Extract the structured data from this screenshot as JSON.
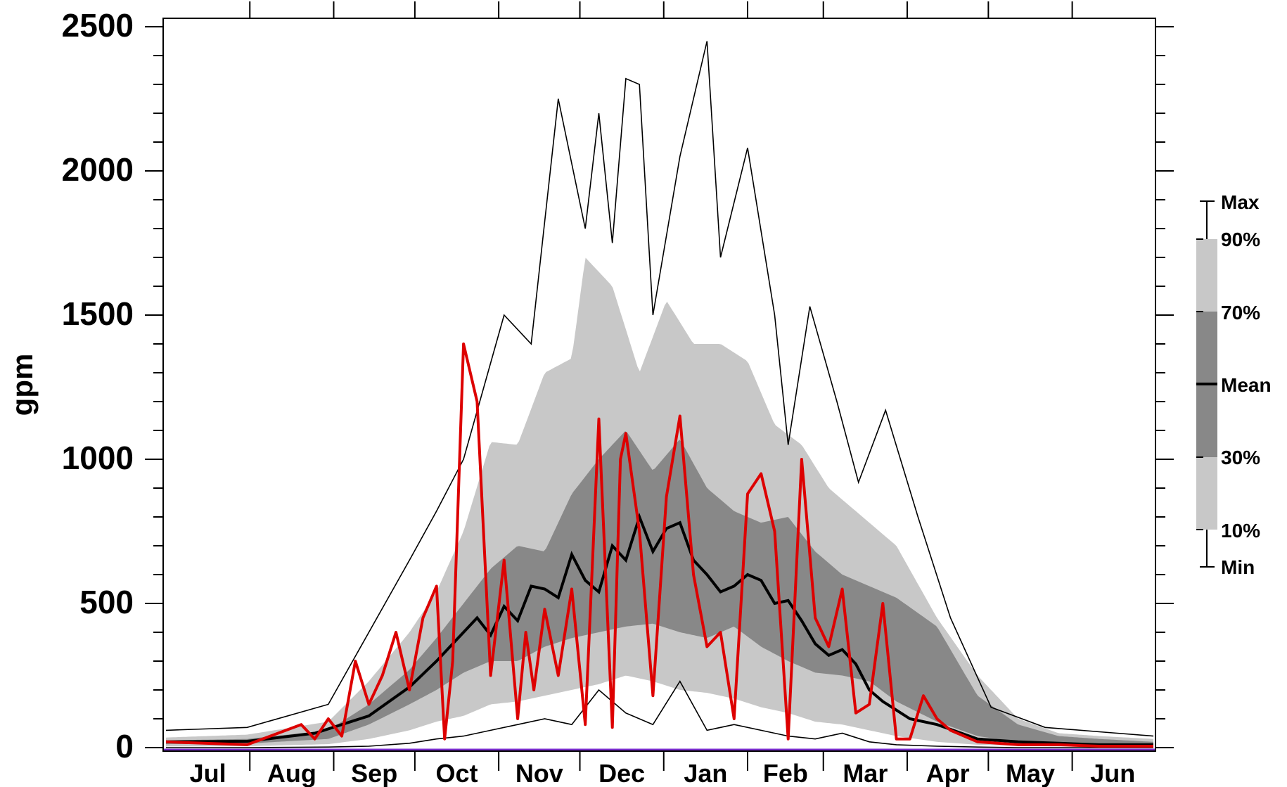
{
  "chart_data": {
    "type": "area",
    "ylabel": "gpm",
    "ylim": [
      0,
      2500
    ],
    "yticks": [
      "0",
      "500",
      "1000",
      "1500",
      "2000",
      "2500"
    ],
    "months": [
      "Jul",
      "Aug",
      "Sep",
      "Oct",
      "Nov",
      "Dec",
      "Jan",
      "Feb",
      "Mar",
      "Apr",
      "May",
      "Jun"
    ],
    "day_axis": [
      0,
      365
    ],
    "legend": {
      "labels": [
        "Max",
        "90%",
        "70%",
        "Mean",
        "30%",
        "10%",
        "Min"
      ],
      "placement": "right"
    },
    "colors": {
      "band_10_90": "#c8c8c8",
      "band_30_70": "#888888",
      "mean": "#000000",
      "max_min": "#000000",
      "current": "#dd0000",
      "zero_line": "#7b2fcf"
    },
    "series": [
      {
        "key": "max",
        "day": [
          0,
          30,
          60,
          75,
          90,
          100,
          110,
          125,
          135,
          145,
          155,
          160,
          165,
          170,
          175,
          180,
          190,
          200,
          205,
          215,
          225,
          230,
          238,
          248,
          256,
          266,
          278,
          290,
          305,
          325,
          345,
          365
        ],
        "values": [
          60,
          70,
          150,
          400,
          650,
          820,
          1000,
          1500,
          1400,
          2250,
          1800,
          2200,
          1750,
          2320,
          2300,
          1500,
          2050,
          2450,
          1700,
          2080,
          1500,
          1050,
          1530,
          1200,
          920,
          1170,
          800,
          450,
          140,
          70,
          55,
          40
        ]
      },
      {
        "key": "p90",
        "day": [
          0,
          30,
          60,
          75,
          90,
          100,
          110,
          120,
          130,
          140,
          150,
          155,
          165,
          175,
          185,
          195,
          205,
          215,
          225,
          235,
          245,
          255,
          270,
          285,
          300,
          315,
          330,
          345,
          365
        ],
        "values": [
          35,
          45,
          90,
          230,
          400,
          540,
          750,
          1060,
          1050,
          1300,
          1350,
          1700,
          1600,
          1300,
          1550,
          1400,
          1400,
          1340,
          1120,
          1050,
          900,
          820,
          700,
          450,
          250,
          100,
          50,
          40,
          30
        ]
      },
      {
        "key": "p70",
        "day": [
          0,
          30,
          60,
          75,
          90,
          100,
          110,
          120,
          130,
          140,
          150,
          160,
          170,
          180,
          190,
          200,
          210,
          220,
          230,
          240,
          250,
          260,
          270,
          285,
          300,
          315,
          330,
          345,
          365
        ],
        "values": [
          25,
          30,
          60,
          150,
          270,
          380,
          500,
          620,
          700,
          680,
          880,
          1000,
          1100,
          960,
          1070,
          900,
          820,
          780,
          800,
          680,
          600,
          560,
          520,
          420,
          180,
          80,
          40,
          30,
          20
        ]
      },
      {
        "key": "mean",
        "day": [
          0,
          30,
          55,
          75,
          90,
          100,
          105,
          110,
          115,
          120,
          125,
          130,
          135,
          140,
          145,
          150,
          155,
          160,
          165,
          170,
          175,
          180,
          185,
          190,
          195,
          200,
          205,
          210,
          215,
          220,
          225,
          230,
          235,
          240,
          245,
          250,
          255,
          260,
          265,
          270,
          275,
          285,
          300,
          315,
          330,
          345,
          365
        ],
        "values": [
          20,
          22,
          50,
          110,
          210,
          300,
          350,
          400,
          450,
          390,
          490,
          440,
          560,
          550,
          520,
          670,
          580,
          540,
          700,
          650,
          800,
          680,
          760,
          780,
          650,
          600,
          540,
          560,
          600,
          580,
          500,
          510,
          440,
          360,
          320,
          340,
          290,
          200,
          160,
          130,
          100,
          80,
          30,
          20,
          15,
          10,
          10
        ]
      },
      {
        "key": "p30",
        "day": [
          0,
          30,
          60,
          75,
          90,
          100,
          110,
          120,
          130,
          140,
          150,
          160,
          170,
          180,
          190,
          200,
          210,
          220,
          230,
          240,
          250,
          260,
          270,
          285,
          300,
          315,
          330,
          345,
          365
        ],
        "values": [
          12,
          14,
          30,
          80,
          150,
          200,
          260,
          300,
          300,
          350,
          380,
          400,
          420,
          430,
          400,
          380,
          420,
          350,
          300,
          260,
          250,
          230,
          160,
          90,
          40,
          20,
          15,
          12,
          10
        ]
      },
      {
        "key": "p10",
        "day": [
          0,
          30,
          60,
          75,
          90,
          100,
          110,
          120,
          130,
          140,
          150,
          160,
          170,
          180,
          190,
          200,
          210,
          220,
          230,
          240,
          250,
          260,
          270,
          285,
          300,
          315,
          330,
          345,
          365
        ],
        "values": [
          4,
          5,
          12,
          30,
          60,
          90,
          110,
          150,
          160,
          180,
          200,
          220,
          250,
          230,
          200,
          190,
          170,
          140,
          120,
          90,
          80,
          60,
          40,
          20,
          10,
          6,
          4,
          3,
          3
        ]
      },
      {
        "key": "min",
        "day": [
          0,
          30,
          60,
          75,
          90,
          100,
          110,
          120,
          130,
          140,
          150,
          160,
          170,
          180,
          190,
          200,
          210,
          220,
          230,
          240,
          250,
          260,
          270,
          285,
          300,
          315,
          330,
          345,
          365
        ],
        "values": [
          0,
          0,
          2,
          5,
          15,
          30,
          40,
          60,
          80,
          100,
          80,
          200,
          120,
          80,
          230,
          60,
          80,
          60,
          40,
          30,
          50,
          20,
          10,
          5,
          2,
          0,
          0,
          0,
          0
        ]
      },
      {
        "key": "current",
        "day": [
          0,
          30,
          50,
          55,
          60,
          65,
          70,
          75,
          80,
          85,
          90,
          95,
          100,
          103,
          106,
          110,
          115,
          120,
          125,
          130,
          133,
          136,
          140,
          145,
          150,
          155,
          160,
          165,
          168,
          170,
          175,
          180,
          185,
          190,
          195,
          200,
          205,
          210,
          215,
          220,
          225,
          230,
          235,
          240,
          245,
          250,
          255,
          260,
          265,
          270,
          275,
          280,
          285,
          290,
          300,
          315,
          330,
          345,
          365
        ],
        "values": [
          20,
          10,
          80,
          30,
          100,
          40,
          300,
          150,
          250,
          400,
          200,
          450,
          560,
          30,
          300,
          1400,
          1200,
          250,
          650,
          100,
          400,
          200,
          480,
          250,
          550,
          80,
          1140,
          70,
          1000,
          1090,
          750,
          180,
          870,
          1150,
          600,
          350,
          400,
          100,
          880,
          950,
          750,
          30,
          1000,
          450,
          350,
          550,
          120,
          150,
          500,
          30,
          30,
          180,
          100,
          60,
          20,
          10,
          10,
          5,
          5
        ]
      }
    ]
  }
}
